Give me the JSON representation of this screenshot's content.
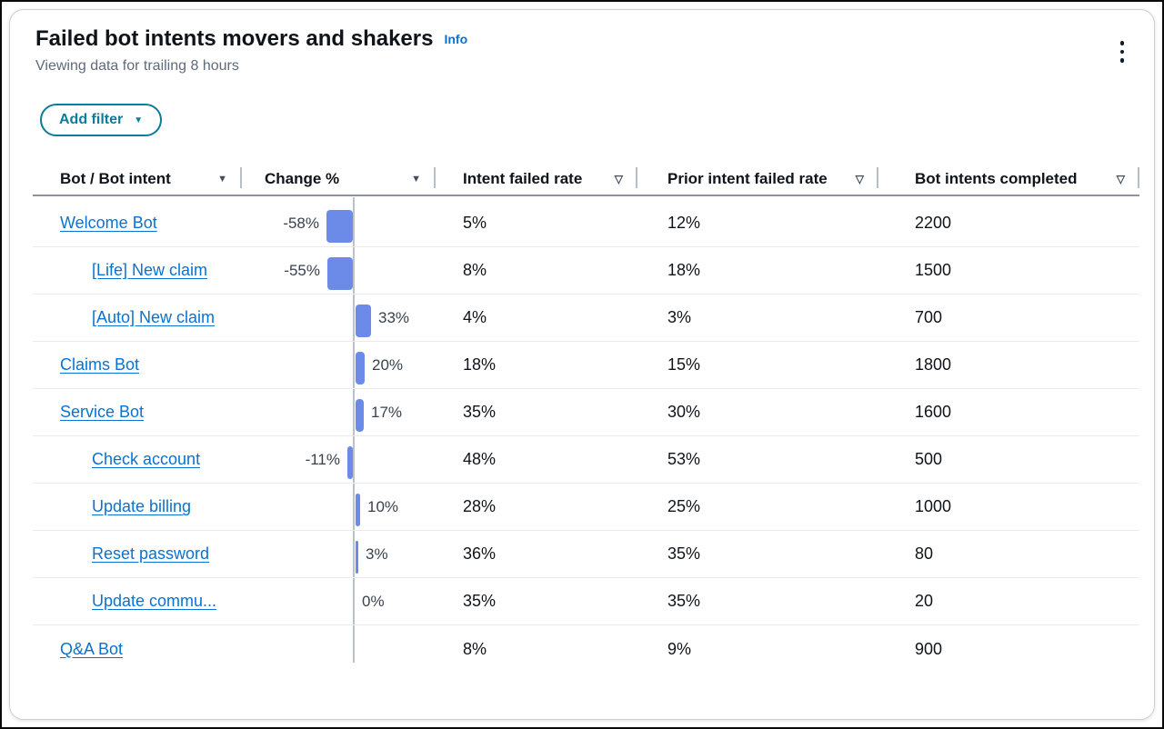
{
  "widget": {
    "title": "Failed bot intents movers and shakers",
    "info_label": "Info",
    "subtitle": "Viewing data for trailing 8 hours",
    "add_filter_label": "Add filter"
  },
  "colors": {
    "link_blue": "#0972d3",
    "button_teal": "#0b7c99",
    "bar_blue": "#6c8be8",
    "axis_line": "#bcc2c9",
    "row_border": "#e9ebed",
    "header_border": "#8b95a2",
    "subtitle_text": "#5f6b7a",
    "title_text": "#0f141a"
  },
  "table": {
    "columns": [
      {
        "label": "Bot / Bot intent",
        "sort_icon": "triangle-down-filled"
      },
      {
        "label": "Change %",
        "sort_icon": "triangle-down-filled"
      },
      {
        "label": "Intent failed rate",
        "sort_icon": "triangle-down-outline"
      },
      {
        "label": "Prior intent failed rate",
        "sort_icon": "triangle-down-outline"
      },
      {
        "label": "Bot intents completed",
        "sort_icon": "triangle-down-outline"
      }
    ],
    "rows": [
      {
        "name": "Welcome Bot",
        "level": "bot",
        "change_pct": -58,
        "change_label": "-58%",
        "intent_failed_rate": "5%",
        "prior_intent_failed_rate": "12%",
        "bot_intents_completed": "2200"
      },
      {
        "name": "[Life] New claim",
        "level": "intent",
        "change_pct": -55,
        "change_label": "-55%",
        "intent_failed_rate": "8%",
        "prior_intent_failed_rate": "18%",
        "bot_intents_completed": "1500"
      },
      {
        "name": "[Auto] New claim",
        "level": "intent",
        "change_pct": 33,
        "change_label": "33%",
        "intent_failed_rate": "4%",
        "prior_intent_failed_rate": "3%",
        "bot_intents_completed": "700"
      },
      {
        "name": "Claims Bot",
        "level": "bot",
        "change_pct": 20,
        "change_label": "20%",
        "intent_failed_rate": "18%",
        "prior_intent_failed_rate": "15%",
        "bot_intents_completed": "1800"
      },
      {
        "name": "Service Bot",
        "level": "bot",
        "change_pct": 17,
        "change_label": "17%",
        "intent_failed_rate": "35%",
        "prior_intent_failed_rate": "30%",
        "bot_intents_completed": "1600"
      },
      {
        "name": "Check account",
        "level": "intent",
        "change_pct": -11,
        "change_label": "-11%",
        "intent_failed_rate": "48%",
        "prior_intent_failed_rate": "53%",
        "bot_intents_completed": "500"
      },
      {
        "name": "Update billing",
        "level": "intent",
        "change_pct": 10,
        "change_label": "10%",
        "intent_failed_rate": "28%",
        "prior_intent_failed_rate": "25%",
        "bot_intents_completed": "1000"
      },
      {
        "name": "Reset password",
        "level": "intent",
        "change_pct": 3,
        "change_label": "3%",
        "intent_failed_rate": "36%",
        "prior_intent_failed_rate": "35%",
        "bot_intents_completed": "80"
      },
      {
        "name": "Update commu...",
        "level": "intent",
        "change_pct": 0,
        "change_label": "0%",
        "intent_failed_rate": "35%",
        "prior_intent_failed_rate": "35%",
        "bot_intents_completed": "20"
      },
      {
        "name": "Q&A Bot",
        "level": "bot",
        "change_pct": null,
        "change_label": null,
        "intent_failed_rate": "8%",
        "prior_intent_failed_rate": "9%",
        "bot_intents_completed": "900"
      }
    ]
  },
  "chart_data": {
    "type": "bar",
    "orientation": "horizontal-diverging",
    "title": "Change %",
    "categories": [
      "Welcome Bot",
      "[Life] New claim",
      "[Auto] New claim",
      "Claims Bot",
      "Service Bot",
      "Check account",
      "Update billing",
      "Reset password",
      "Update commu...",
      "Q&A Bot"
    ],
    "values": [
      -58,
      -55,
      33,
      20,
      17,
      -11,
      10,
      3,
      0,
      null
    ],
    "zero_baseline": true,
    "bar_color": "#6c8be8",
    "legend": "none",
    "grid": "zero-axis-only"
  }
}
